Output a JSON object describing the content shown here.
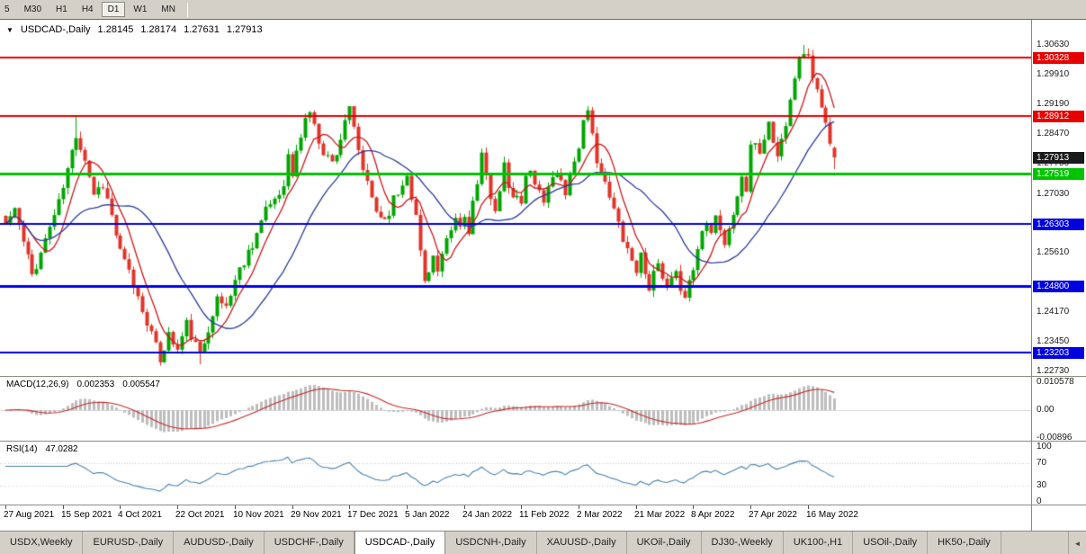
{
  "toolbar": {
    "timeframes": [
      "5",
      "M30",
      "H1",
      "H4",
      "D1",
      "W1",
      "MN"
    ],
    "active_timeframe": "D1"
  },
  "chart": {
    "readout": {
      "dropdown_icon": "▼",
      "symbol": "USDCAD-,Daily",
      "open": "1.28145",
      "high": "1.28174",
      "low": "1.27631",
      "close": "1.27913"
    },
    "price_axis": {
      "ticks": [
        "1.30630",
        "1.29910",
        "1.29190",
        "1.28470",
        "1.27750",
        "1.27030",
        "1.26310",
        "1.25610",
        "1.24170",
        "1.23450",
        "1.22730"
      ],
      "chips": [
        {
          "label": "1.30328",
          "value": 1.30328,
          "bg": "#E60000",
          "fg": "#FFFFFF"
        },
        {
          "label": "1.28912",
          "value": 1.28912,
          "bg": "#E60000",
          "fg": "#FFFFFF"
        },
        {
          "label": "1.27913",
          "value": 1.27913,
          "bg": "#1A1A1A",
          "fg": "#FFFFFF"
        },
        {
          "label": "1.27519",
          "value": 1.27519,
          "bg": "#00C400",
          "fg": "#FFFFFF"
        },
        {
          "label": "1.26303",
          "value": 1.26303,
          "bg": "#0000E0",
          "fg": "#FFFFFF"
        },
        {
          "label": "1.24800",
          "value": 1.248,
          "bg": "#0000E0",
          "fg": "#FFFFFF"
        },
        {
          "label": "1.23203",
          "value": 1.23203,
          "bg": "#0000E0",
          "fg": "#FFFFFF"
        }
      ]
    },
    "macd_axis": [
      "0.010578",
      "0.00",
      "-0.00896"
    ],
    "rsi_axis": [
      {
        "label": "100",
        "value": 100
      },
      {
        "label": "70",
        "value": 70
      },
      {
        "label": "30",
        "value": 30
      },
      {
        "label": "0",
        "value": 0
      }
    ],
    "time_axis": [
      {
        "label": "27 Aug 2021",
        "index": 0
      },
      {
        "label": "15 Sep 2021",
        "index": 13
      },
      {
        "label": "4 Oct 2021",
        "index": 26
      },
      {
        "label": "22 Oct 2021",
        "index": 39
      },
      {
        "label": "10 Nov 2021",
        "index": 52
      },
      {
        "label": "29 Nov 2021",
        "index": 65
      },
      {
        "label": "17 Dec 2021",
        "index": 78
      },
      {
        "label": "5 Jan 2022",
        "index": 91
      },
      {
        "label": "24 Jan 2022",
        "index": 104
      },
      {
        "label": "11 Feb 2022",
        "index": 117
      },
      {
        "label": "2 Mar 2022",
        "index": 130
      },
      {
        "label": "21 Mar 2022",
        "index": 143
      },
      {
        "label": "8 Apr 2022",
        "index": 156
      },
      {
        "label": "27 Apr 2022",
        "index": 169
      },
      {
        "label": "16 May 2022",
        "index": 182
      }
    ]
  },
  "indicators": {
    "macd": {
      "name": "MACD(12,26,9)",
      "value_main": "0.002353",
      "value_signal": "0.005547"
    },
    "rsi": {
      "name": "RSI(14)",
      "value": "47.0282"
    }
  },
  "tab_bar": {
    "tabs": [
      "USDX,Weekly",
      "EURUSD-,Daily",
      "AUDUSD-,Daily",
      "USDCHF-,Daily",
      "USDCAD-,Daily",
      "USDCNH-,Daily",
      "XAUUSD-,Daily",
      "UKOil-,Daily",
      "DJ30-,Weekly",
      "UK100-,H1",
      "USOil-,Daily",
      "HK50-,Daily"
    ],
    "active_tab": "USDCAD-,Daily",
    "scroll_left_icon": "◄"
  },
  "chart_data": {
    "type": "candlestick",
    "symbol": "USDCAD-",
    "timeframe": "Daily",
    "title": "USDCAD-,Daily",
    "price_range": {
      "top": 1.3063,
      "bottom": 1.2273
    },
    "candle_count": 189,
    "last_candle": {
      "open": 1.28145,
      "high": 1.28174,
      "low": 1.27631,
      "close": 1.27913
    },
    "close_anchors": [
      [
        0,
        1.263
      ],
      [
        2,
        1.2668
      ],
      [
        4,
        1.2585
      ],
      [
        6,
        1.2508
      ],
      [
        8,
        1.256
      ],
      [
        10,
        1.2625
      ],
      [
        12,
        1.268
      ],
      [
        14,
        1.276
      ],
      [
        16,
        1.2848
      ],
      [
        18,
        1.279
      ],
      [
        20,
        1.2705
      ],
      [
        22,
        1.2728
      ],
      [
        24,
        1.265
      ],
      [
        26,
        1.256
      ],
      [
        28,
        1.2512
      ],
      [
        30,
        1.2452
      ],
      [
        32,
        1.2398
      ],
      [
        34,
        1.233
      ],
      [
        35,
        1.2302
      ],
      [
        36,
        1.2335
      ],
      [
        37,
        1.2362
      ],
      [
        39,
        1.2325
      ],
      [
        41,
        1.2388
      ],
      [
        43,
        1.2335
      ],
      [
        44,
        1.231
      ],
      [
        45,
        1.2345
      ],
      [
        47,
        1.242
      ],
      [
        48,
        1.2445
      ],
      [
        50,
        1.2432
      ],
      [
        52,
        1.2495
      ],
      [
        54,
        1.2542
      ],
      [
        56,
        1.2585
      ],
      [
        58,
        1.2635
      ],
      [
        60,
        1.268
      ],
      [
        62,
        1.2705
      ],
      [
        63,
        1.2735
      ],
      [
        64,
        1.2792
      ],
      [
        65,
        1.2748
      ],
      [
        66,
        1.28
      ],
      [
        67,
        1.2845
      ],
      [
        68,
        1.2885
      ],
      [
        69,
        1.2905
      ],
      [
        70,
        1.2862
      ],
      [
        72,
        1.2808
      ],
      [
        74,
        1.2778
      ],
      [
        76,
        1.2838
      ],
      [
        77,
        1.2885
      ],
      [
        78,
        1.2902
      ],
      [
        79,
        1.2855
      ],
      [
        80,
        1.2805
      ],
      [
        82,
        1.2722
      ],
      [
        84,
        1.2662
      ],
      [
        86,
        1.2642
      ],
      [
        88,
        1.2688
      ],
      [
        90,
        1.2726
      ],
      [
        91,
        1.2758
      ],
      [
        92,
        1.2702
      ],
      [
        93,
        1.2645
      ],
      [
        94,
        1.2565
      ],
      [
        95,
        1.2492
      ],
      [
        96,
        1.2525
      ],
      [
        97,
        1.2552
      ],
      [
        98,
        1.2512
      ],
      [
        100,
        1.2582
      ],
      [
        102,
        1.2642
      ],
      [
        103,
        1.2622
      ],
      [
        104,
        1.2648
      ],
      [
        105,
        1.2618
      ],
      [
        106,
        1.2682
      ],
      [
        107,
        1.2722
      ],
      [
        108,
        1.2788
      ],
      [
        109,
        1.2742
      ],
      [
        110,
        1.2702
      ],
      [
        111,
        1.2672
      ],
      [
        112,
        1.2705
      ],
      [
        113,
        1.2765
      ],
      [
        114,
        1.2722
      ],
      [
        115,
        1.2682
      ],
      [
        116,
        1.2702
      ],
      [
        117,
        1.2672
      ],
      [
        118,
        1.2742
      ],
      [
        119,
        1.2772
      ],
      [
        120,
        1.2732
      ],
      [
        122,
        1.2682
      ],
      [
        124,
        1.2752
      ],
      [
        126,
        1.2742
      ],
      [
        127,
        1.2712
      ],
      [
        128,
        1.2752
      ],
      [
        129,
        1.2785
      ],
      [
        130,
        1.2822
      ],
      [
        131,
        1.2872
      ],
      [
        132,
        1.2892
      ],
      [
        133,
        1.2842
      ],
      [
        134,
        1.2792
      ],
      [
        136,
        1.2722
      ],
      [
        138,
        1.2662
      ],
      [
        140,
        1.2602
      ],
      [
        142,
        1.2542
      ],
      [
        143,
        1.2522
      ],
      [
        144,
        1.2552
      ],
      [
        145,
        1.2522
      ],
      [
        146,
        1.2482
      ],
      [
        147,
        1.2502
      ],
      [
        148,
        1.2532
      ],
      [
        149,
        1.2492
      ],
      [
        150,
        1.2472
      ],
      [
        152,
        1.2502
      ],
      [
        154,
        1.2462
      ],
      [
        156,
        1.2522
      ],
      [
        157,
        1.2572
      ],
      [
        158,
        1.2612
      ],
      [
        159,
        1.2642
      ],
      [
        160,
        1.2622
      ],
      [
        161,
        1.2652
      ],
      [
        162,
        1.2622
      ],
      [
        163,
        1.2582
      ],
      [
        164,
        1.2612
      ],
      [
        165,
        1.2655
      ],
      [
        166,
        1.2702
      ],
      [
        167,
        1.2742
      ],
      [
        168,
        1.2712
      ],
      [
        169,
        1.2808
      ],
      [
        170,
        1.2832
      ],
      [
        171,
        1.2802
      ],
      [
        172,
        1.2842
      ],
      [
        173,
        1.2872
      ],
      [
        174,
        1.2832
      ],
      [
        175,
        1.2792
      ],
      [
        176,
        1.2832
      ],
      [
        177,
        1.2882
      ],
      [
        178,
        1.2942
      ],
      [
        179,
        1.2992
      ],
      [
        180,
        1.3022
      ],
      [
        181,
        1.3052
      ],
      [
        182,
        1.3028
      ],
      [
        183,
        1.2992
      ],
      [
        184,
        1.2952
      ],
      [
        185,
        1.2902
      ],
      [
        186,
        1.2868
      ],
      [
        187,
        1.2815
      ],
      [
        188,
        1.27913
      ]
    ],
    "wick_overrides": [
      [
        35,
        "low",
        1.2288
      ],
      [
        44,
        "low",
        1.2291
      ],
      [
        16,
        "high",
        1.2893
      ],
      [
        78,
        "high",
        1.2914
      ],
      [
        132,
        "high",
        1.2915
      ],
      [
        181,
        "high",
        1.3063
      ]
    ],
    "noise_seed": 11,
    "levels": [
      {
        "value": 1.30328,
        "color": "#E60000",
        "width": 2
      },
      {
        "value": 1.28912,
        "color": "#E60000",
        "width": 2
      },
      {
        "value": 1.27519,
        "color": "#00C400",
        "width": 3
      },
      {
        "value": 1.26303,
        "color": "#0000E0",
        "width": 2
      },
      {
        "value": 1.248,
        "color": "#0000E0",
        "width": 3
      },
      {
        "value": 1.23203,
        "color": "#0000E0",
        "width": 2
      }
    ],
    "style": {
      "bull": "#00A600",
      "bear": "#E23428",
      "ma_fast": {
        "period": 7,
        "color": "#CC1818"
      },
      "ma_slow": {
        "period": 22,
        "color": "#2B3B9E"
      }
    },
    "macd": {
      "fast": 12,
      "slow": 26,
      "signal": 9,
      "hist_color": "#BDBDBD",
      "signal_color": "#C82828",
      "current_main": 0.002353,
      "current_signal": 0.005547
    },
    "rsi": {
      "period": 14,
      "color": "#4682B4",
      "levels": [
        70,
        30
      ],
      "current": 47.0282
    }
  }
}
